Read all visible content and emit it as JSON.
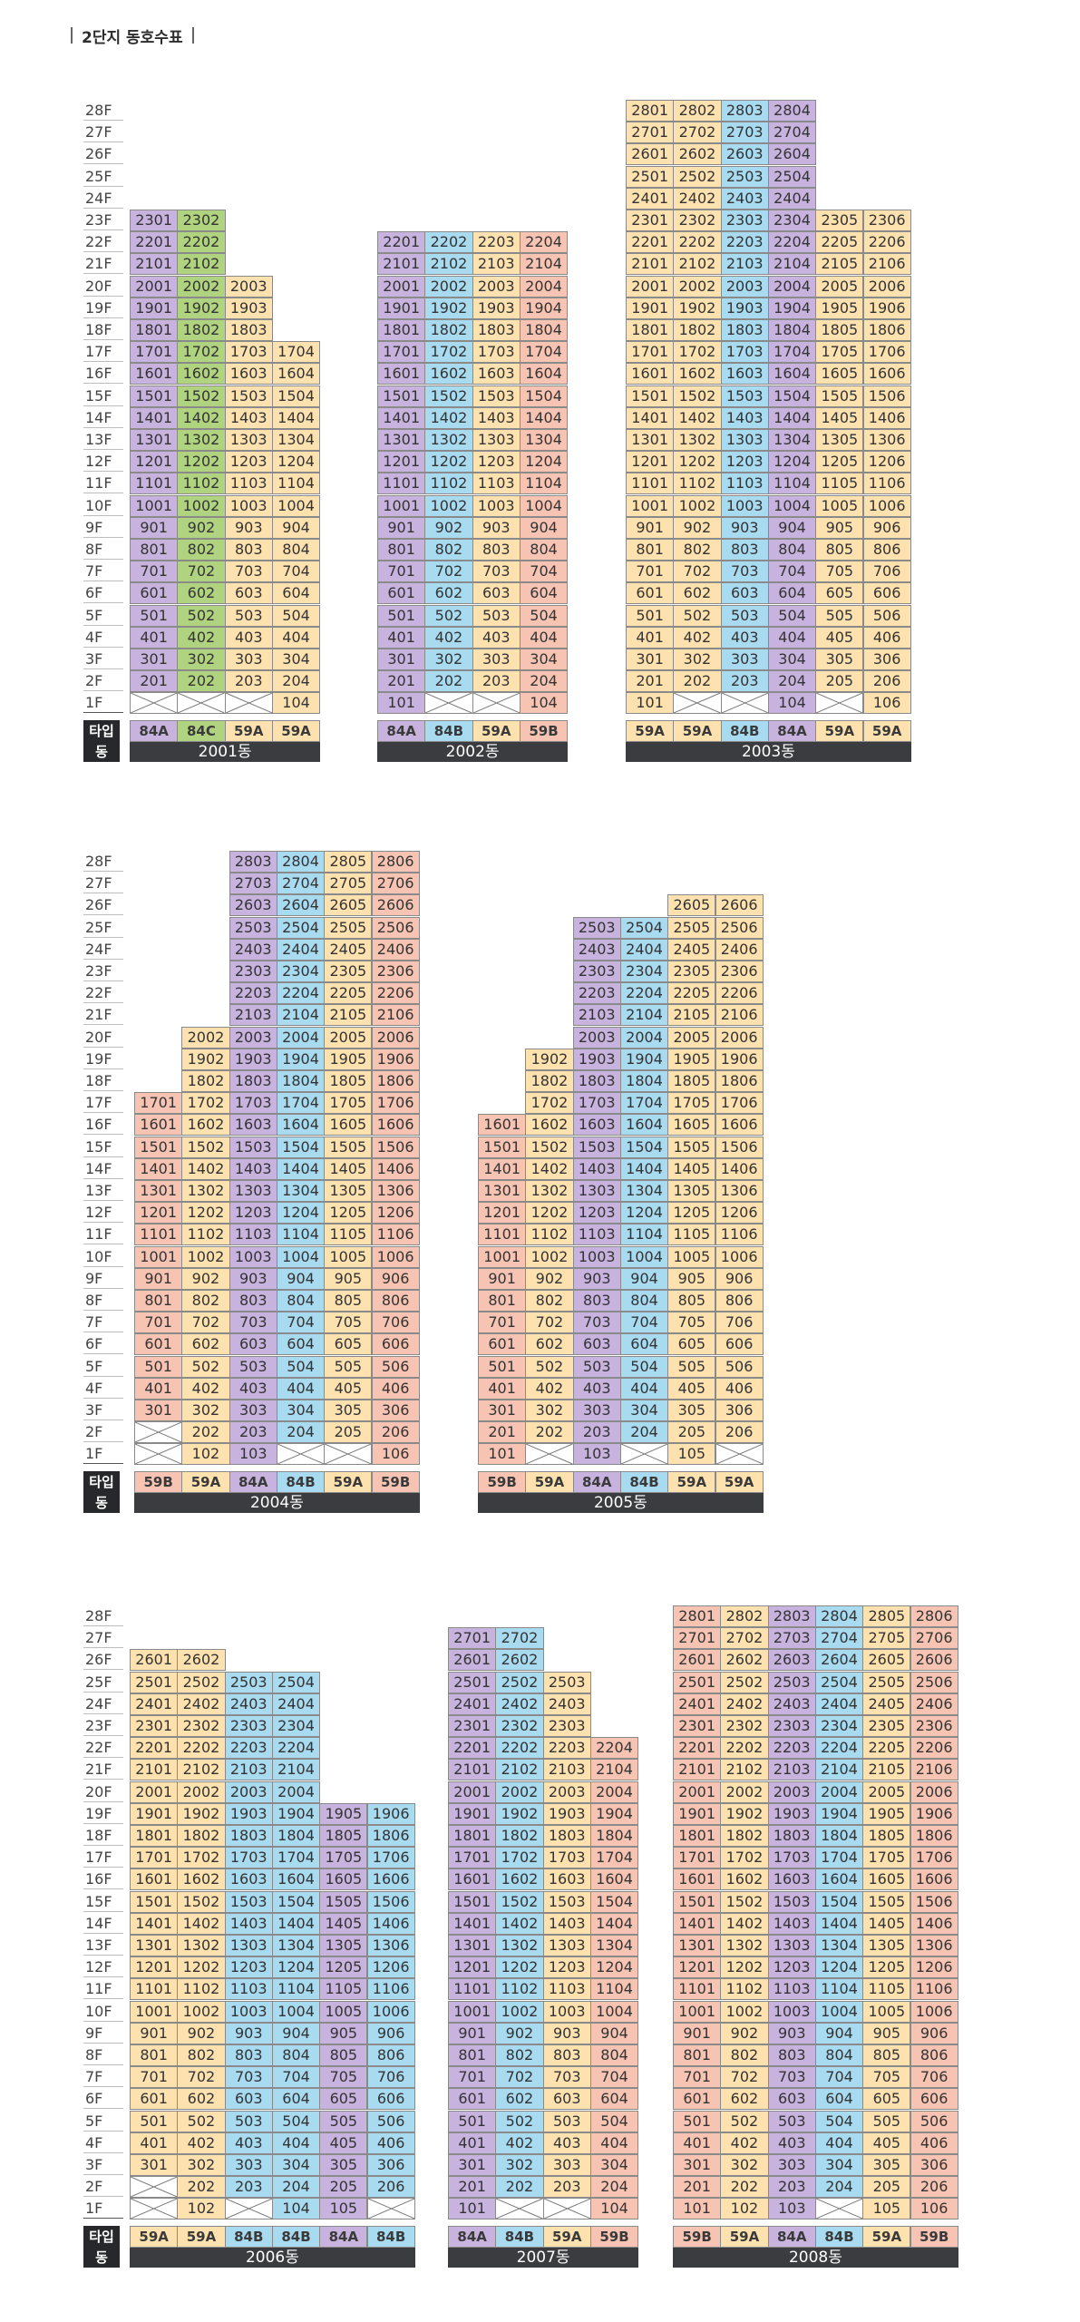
{
  "title": "2단지 동호수표",
  "labels": {
    "type": "타입",
    "dong": "동"
  },
  "colors": {
    "84A": "#c8b2de",
    "84B": "#a8daf0",
    "84C": "#b0d37f",
    "59A": "#fde2b0",
    "59B": "#f7c4b3"
  },
  "rows": [
    {
      "floors": [
        "28F",
        "27F",
        "26F",
        "25F",
        "24F",
        "23F",
        "22F",
        "21F",
        "20F",
        "19F",
        "18F",
        "17F",
        "16F",
        "15F",
        "14F",
        "13F",
        "12F",
        "11F",
        "10F",
        "9F",
        "8F",
        "7F",
        "6F",
        "5F",
        "4F",
        "3F",
        "2F",
        "1F"
      ],
      "buildings": [
        {
          "name": "2001동",
          "lines": [
            {
              "type": "84A",
              "top": 23,
              "empty": [
                1
              ]
            },
            {
              "type": "84C",
              "top": 23,
              "empty": [
                1
              ]
            },
            {
              "type": "59A",
              "top": 20,
              "empty": [
                1
              ]
            },
            {
              "type": "59A",
              "top": 17,
              "empty": []
            }
          ]
        },
        {
          "name": "2002동",
          "lines": [
            {
              "type": "84A",
              "top": 22,
              "empty": []
            },
            {
              "type": "84B",
              "top": 22,
              "empty": [
                1
              ]
            },
            {
              "type": "59A",
              "top": 22,
              "empty": [
                1
              ]
            },
            {
              "type": "59B",
              "top": 22,
              "empty": []
            }
          ]
        },
        {
          "name": "2003동",
          "lines": [
            {
              "type": "59A",
              "top": 28,
              "empty": []
            },
            {
              "type": "59A",
              "top": 28,
              "empty": [
                1
              ]
            },
            {
              "type": "84B",
              "top": 28,
              "empty": [
                1
              ]
            },
            {
              "type": "84A",
              "top": 28,
              "empty": []
            },
            {
              "type": "59A",
              "top": 23,
              "empty": [
                1
              ]
            },
            {
              "type": "59A",
              "top": 23,
              "empty": []
            }
          ]
        }
      ]
    },
    {
      "floors": [
        "28F",
        "27F",
        "26F",
        "25F",
        "24F",
        "23F",
        "22F",
        "21F",
        "20F",
        "19F",
        "18F",
        "17F",
        "16F",
        "15F",
        "14F",
        "13F",
        "12F",
        "11F",
        "10F",
        "9F",
        "8F",
        "7F",
        "6F",
        "5F",
        "4F",
        "3F",
        "2F",
        "1F"
      ],
      "buildings": [
        {
          "name": "2004동",
          "lines": [
            {
              "type": "59B",
              "top": 17,
              "empty": [
                1,
                2
              ]
            },
            {
              "type": "59A",
              "top": 20,
              "empty": []
            },
            {
              "type": "84A",
              "top": 28,
              "empty": []
            },
            {
              "type": "84B",
              "top": 28,
              "empty": [
                1
              ]
            },
            {
              "type": "59A",
              "top": 28,
              "empty": [
                1
              ]
            },
            {
              "type": "59B",
              "top": 28,
              "empty": []
            }
          ]
        },
        {
          "name": "2005동",
          "lines": [
            {
              "type": "59B",
              "top": 16,
              "empty": []
            },
            {
              "type": "59A",
              "top": 19,
              "empty": [
                1
              ]
            },
            {
              "type": "84A",
              "top": 25,
              "empty": []
            },
            {
              "type": "84B",
              "top": 25,
              "empty": [
                1
              ]
            },
            {
              "type": "59A",
              "top": 26,
              "empty": []
            },
            {
              "type": "59A",
              "top": 26,
              "empty": [
                1
              ]
            }
          ]
        }
      ]
    },
    {
      "floors": [
        "28F",
        "27F",
        "26F",
        "25F",
        "24F",
        "23F",
        "22F",
        "21F",
        "20F",
        "19F",
        "18F",
        "17F",
        "16F",
        "15F",
        "14F",
        "13F",
        "12F",
        "11F",
        "10F",
        "9F",
        "8F",
        "7F",
        "6F",
        "5F",
        "4F",
        "3F",
        "2F",
        "1F"
      ],
      "buildings": [
        {
          "name": "2006동",
          "lines": [
            {
              "type": "59A",
              "top": 26,
              "empty": [
                1,
                2
              ]
            },
            {
              "type": "59A",
              "top": 26,
              "empty": []
            },
            {
              "type": "84B",
              "top": 25,
              "empty": [
                1
              ]
            },
            {
              "type": "84B",
              "top": 25,
              "empty": []
            },
            {
              "type": "84A",
              "top": 19,
              "empty": []
            },
            {
              "type": "84B",
              "top": 19,
              "empty": [
                1
              ]
            }
          ]
        },
        {
          "name": "2007동",
          "lines": [
            {
              "type": "84A",
              "top": 27,
              "empty": []
            },
            {
              "type": "84B",
              "top": 27,
              "empty": [
                1
              ]
            },
            {
              "type": "59A",
              "top": 25,
              "empty": [
                1
              ]
            },
            {
              "type": "59B",
              "top": 22,
              "empty": []
            }
          ]
        },
        {
          "name": "2008동",
          "lines": [
            {
              "type": "59B",
              "top": 28,
              "empty": []
            },
            {
              "type": "59A",
              "top": 28,
              "empty": []
            },
            {
              "type": "84A",
              "top": 28,
              "empty": []
            },
            {
              "type": "84B",
              "top": 28,
              "empty": [
                1
              ]
            },
            {
              "type": "59A",
              "top": 28,
              "empty": []
            },
            {
              "type": "59B",
              "top": 28,
              "empty": []
            }
          ]
        }
      ]
    }
  ]
}
